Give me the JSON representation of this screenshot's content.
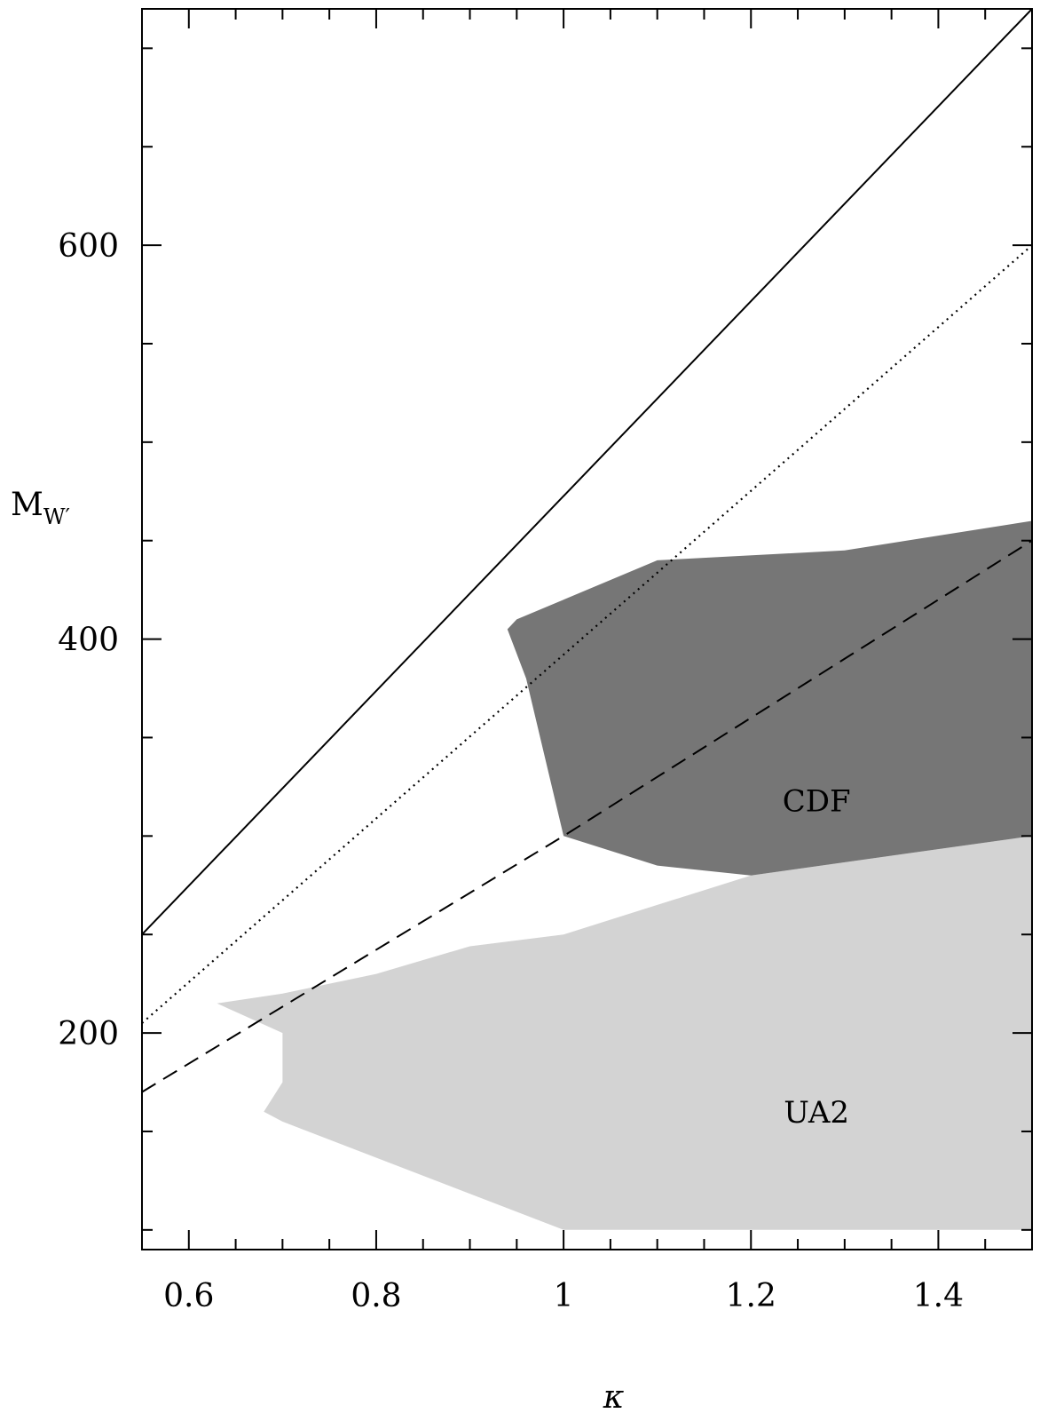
{
  "chart_data": {
    "type": "area",
    "xlabel": "κ",
    "ylabel": "M",
    "ylabel_subscript": "W′",
    "xlim": [
      0.55,
      1.5
    ],
    "ylim": [
      90,
      720
    ],
    "x_ticks_major": [
      0.6,
      0.8,
      1,
      1.2,
      1.4
    ],
    "x_tick_labels": [
      "0.6",
      "0.8",
      "1",
      "1.2",
      "1.4"
    ],
    "x_ticks_minor": [
      0.65,
      0.7,
      0.75,
      0.85,
      0.9,
      0.95,
      1.05,
      1.1,
      1.15,
      1.25,
      1.3,
      1.35,
      1.45
    ],
    "y_ticks_major": [
      200,
      400,
      600
    ],
    "y_tick_labels": [
      "200",
      "400",
      "600"
    ],
    "y_ticks_minor": [
      100,
      150,
      250,
      300,
      350,
      450,
      500,
      550,
      650,
      700
    ],
    "grid": false,
    "regions": [
      {
        "name": "UA2",
        "label": "UA2",
        "color": "#d3d3d3",
        "label_position": [
          1.27,
          160
        ],
        "points": [
          [
            0.63,
            215
          ],
          [
            0.7,
            220
          ],
          [
            0.8,
            230
          ],
          [
            0.9,
            244
          ],
          [
            1.0,
            250
          ],
          [
            1.1,
            265
          ],
          [
            1.2,
            280
          ],
          [
            1.5,
            300
          ],
          [
            1.5,
            100
          ],
          [
            1.0,
            100
          ],
          [
            0.7,
            155
          ],
          [
            0.68,
            160
          ],
          [
            0.7,
            175
          ],
          [
            0.7,
            200
          ],
          [
            0.63,
            215
          ]
        ]
      },
      {
        "name": "CDF",
        "label": "CDF",
        "color": "#767676",
        "label_position": [
          1.27,
          318
        ],
        "points": [
          [
            0.94,
            405
          ],
          [
            0.95,
            410
          ],
          [
            1.1,
            440
          ],
          [
            1.3,
            445
          ],
          [
            1.5,
            460
          ],
          [
            1.5,
            300
          ],
          [
            1.2,
            280
          ],
          [
            1.1,
            285
          ],
          [
            1.0,
            300
          ],
          [
            0.96,
            380
          ],
          [
            0.94,
            405
          ]
        ]
      }
    ],
    "series": [
      {
        "style": "solid",
        "color": "#000000",
        "x": [
          0.55,
          1.5
        ],
        "y": [
          250,
          720
        ]
      },
      {
        "style": "dotted",
        "color": "#000000",
        "x": [
          0.55,
          1.5
        ],
        "y": [
          205,
          600
        ]
      },
      {
        "style": "dashed",
        "color": "#000000",
        "x": [
          0.55,
          1.0,
          1.5
        ],
        "y": [
          170,
          300,
          450
        ]
      }
    ]
  }
}
